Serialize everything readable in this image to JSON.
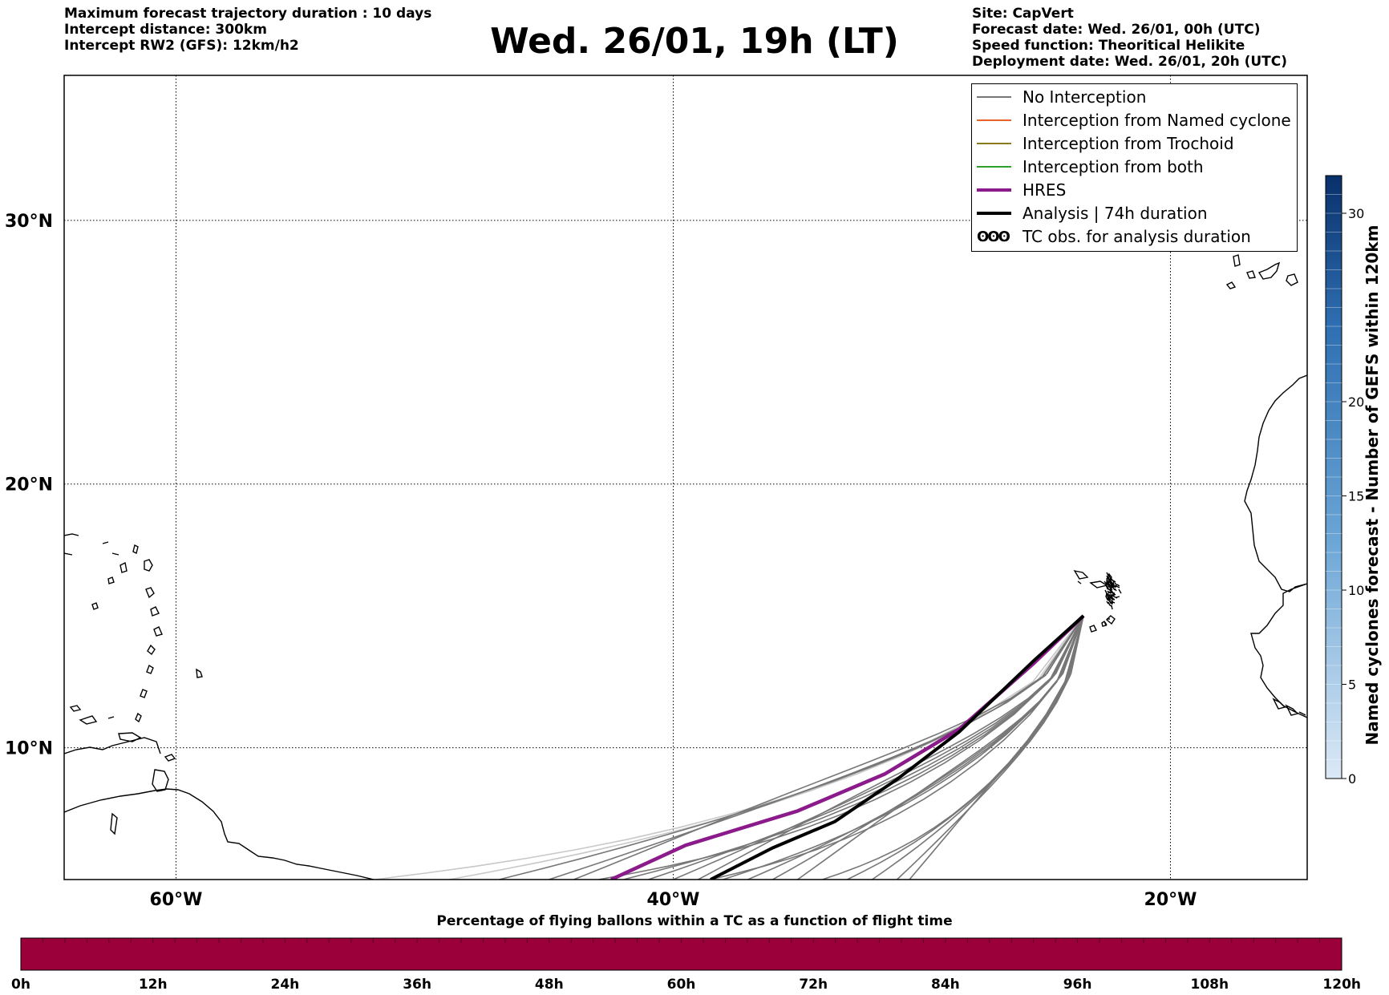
{
  "header": {
    "left_lines": [
      "Maximum forecast trajectory duration : 10 days",
      "Intercept distance: 300km",
      "Intercept RW2 (GFS):  12km/h2"
    ],
    "title": "Wed. 26/01, 19h (LT)",
    "right_lines": [
      "Site: CapVert",
      "Forecast date: Wed. 26/01, 00h (UTC)",
      "Speed function: Theoritical Helikite",
      "Deployment date: Wed. 26/01, 20h (UTC)"
    ]
  },
  "map": {
    "lat_range": [
      5,
      35.5
    ],
    "lon_range": [
      -64.5,
      -14.5
    ],
    "lat_ticks": [
      {
        "lat": 30,
        "label": "30°N"
      },
      {
        "lat": 20,
        "label": "20°N"
      },
      {
        "lat": 10,
        "label": "10°N"
      }
    ],
    "lon_ticks": [
      {
        "lon": -60,
        "label": "60°W"
      },
      {
        "lon": -40,
        "label": "40°W"
      },
      {
        "lon": -20,
        "label": "20°W"
      }
    ],
    "grid": true,
    "legend_placement": "top-right",
    "legend": [
      {
        "label": "No Interception",
        "color": "#777777",
        "kind": "line"
      },
      {
        "label": "Interception from Named cyclone",
        "color": "#e8632a",
        "kind": "line"
      },
      {
        "label": "Interception from Trochoid",
        "color": "#8a7a1c",
        "kind": "line"
      },
      {
        "label": "Interception from both",
        "color": "#2ca02c",
        "kind": "line"
      },
      {
        "label": "HRES",
        "color": "#8b1a8b",
        "kind": "thick"
      },
      {
        "label": "Analysis | 74h duration",
        "color": "#000000",
        "kind": "thick"
      },
      {
        "label": "TC obs. for analysis duration",
        "color": "#000000",
        "kind": "symbol",
        "symbol": "ʘʘʘ"
      }
    ],
    "trajectories": {
      "start": [
        -23.5,
        15.0
      ],
      "hres": [
        [
          -23.5,
          15.0
        ],
        [
          -25.5,
          13.2
        ],
        [
          -28.5,
          10.7
        ],
        [
          -31.5,
          9.0
        ],
        [
          -35,
          7.6
        ],
        [
          -39.5,
          6.3
        ],
        [
          -42.5,
          5.0
        ]
      ],
      "analysis": [
        [
          -23.5,
          15.0
        ],
        [
          -25.5,
          13.3
        ],
        [
          -28.5,
          10.6
        ],
        [
          -31,
          8.8
        ],
        [
          -33.5,
          7.2
        ],
        [
          -36,
          6.2
        ],
        [
          -38.5,
          5.0
        ]
      ],
      "ensemble_end_lons": [
        -52,
        -49,
        -47,
        -45,
        -44,
        -43,
        -42,
        -41,
        -40,
        -39,
        -38.5,
        -38,
        -37,
        -36,
        -35,
        -34,
        -33,
        -32,
        -31,
        -30.5
      ],
      "faint_end_lons": [
        -52,
        -49
      ]
    },
    "regions": {
      "canary_islands": "Canary Islands",
      "cape_verde": "Cape Verde",
      "africa": "West Africa coast",
      "south_america": "South America coast",
      "caribbean": "Lesser Antilles"
    }
  },
  "colorbar_right": {
    "label": "Named cyclones forecast - Number of GEFS within 120km",
    "ticks": [
      0,
      5,
      10,
      15,
      20,
      30
    ],
    "range": [
      0,
      32
    ],
    "color_low": "#dce9f6",
    "color_high": "#08306b"
  },
  "colorbar_bottom": {
    "title": "Percentage of flying ballons within a TC as a function of flight time",
    "ticks": [
      "0h",
      "12h",
      "24h",
      "36h",
      "48h",
      "60h",
      "72h",
      "84h",
      "96h",
      "108h",
      "120h"
    ],
    "fill_color": "#9b003a"
  }
}
